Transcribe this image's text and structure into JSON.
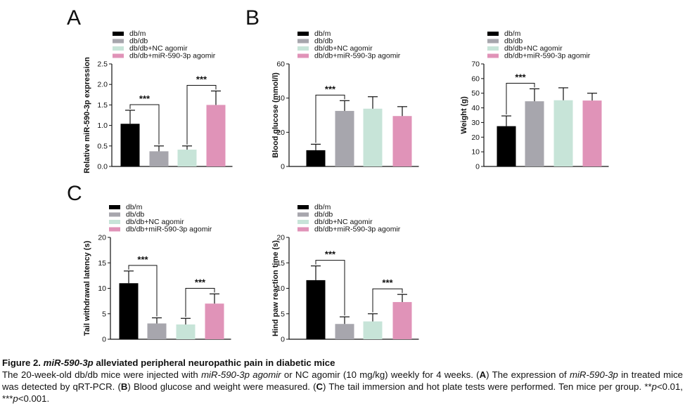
{
  "colors": {
    "db_m": "#000000",
    "db_db": "#a7a6ad",
    "nc_agomir": "#c7e4d8",
    "agomir": "#e093b8"
  },
  "chart_data": [
    {
      "panel": "A",
      "type": "bar",
      "categories": [
        "db/m",
        "db/db",
        "db/db+NC agomir",
        "db/db+miR-590-3p agomir"
      ],
      "values": [
        1.04,
        0.37,
        0.41,
        1.5
      ],
      "errors": [
        0.33,
        0.13,
        0.09,
        0.34
      ],
      "ylabel": "Relative miR-590-3p expression",
      "ylim": [
        0,
        2.5
      ],
      "yticks": [
        "0.0",
        "0.5",
        "1.0",
        "1.5",
        "2.0",
        "2.5"
      ],
      "significance": [
        {
          "from": 0,
          "to": 1,
          "label": "***"
        },
        {
          "from": 2,
          "to": 3,
          "label": "***"
        }
      ]
    },
    {
      "panel": "B",
      "type": "bar",
      "categories": [
        "db/m",
        "db/db",
        "db/db+NC agomir",
        "db/db+miR-590-3p agomir"
      ],
      "values": [
        9.5,
        32.5,
        33.8,
        29.5
      ],
      "errors": [
        3.5,
        6.0,
        7.0,
        5.5
      ],
      "ylabel": "Blood glucose (mmol/l)",
      "ylim": [
        0,
        60
      ],
      "yticks": [
        "0",
        "20",
        "40",
        "60"
      ],
      "significance": [
        {
          "from": 0,
          "to": 1,
          "label": "***"
        }
      ]
    },
    {
      "panel": "",
      "type": "bar",
      "categories": [
        "db/m",
        "db/db",
        "db/db+NC agomir",
        "db/db+miR-590-3p agomir"
      ],
      "values": [
        27.5,
        44.5,
        45.2,
        45.0
      ],
      "errors": [
        7.0,
        8.5,
        8.5,
        5.0
      ],
      "ylabel": "Weight (g)",
      "ylim": [
        0,
        70
      ],
      "yticks": [
        "0",
        "10",
        "20",
        "30",
        "40",
        "50",
        "60",
        "70"
      ],
      "significance": [
        {
          "from": 0,
          "to": 1,
          "label": "***"
        }
      ]
    },
    {
      "panel": "C",
      "type": "bar",
      "categories": [
        "db/m",
        "db/db",
        "db/db+NC agomir",
        "db/db+miR-590-3p agomir"
      ],
      "values": [
        11.0,
        3.1,
        2.9,
        7.0
      ],
      "errors": [
        2.4,
        1.1,
        1.2,
        1.9
      ],
      "ylabel": "Tail withdrawal latency (s)",
      "ylim": [
        0,
        20
      ],
      "yticks": [
        "0",
        "5",
        "10",
        "15",
        "20"
      ],
      "significance": [
        {
          "from": 0,
          "to": 1,
          "label": "***"
        },
        {
          "from": 2,
          "to": 3,
          "label": "***"
        }
      ]
    },
    {
      "panel": "",
      "type": "bar",
      "categories": [
        "db/m",
        "db/db",
        "db/db+NC agomir",
        "db/db+miR-590-3p agomir"
      ],
      "values": [
        11.6,
        3.0,
        3.5,
        7.3
      ],
      "errors": [
        2.8,
        1.4,
        1.5,
        1.5
      ],
      "ylabel": "Hind paw reaction time (s)",
      "ylim": [
        0,
        20
      ],
      "yticks": [
        "0",
        "5",
        "10",
        "15",
        "20"
      ],
      "significance": [
        {
          "from": 0,
          "to": 1,
          "label": "***"
        },
        {
          "from": 2,
          "to": 3,
          "label": "***"
        }
      ]
    }
  ],
  "caption": {
    "title_prefix": "Figure 2. ",
    "title_gene": "miR-590-3p",
    "title_rest": " alleviated peripheral neuropathic pain in diabetic mice",
    "t1": "The 20-week-old db/db mice were injected with ",
    "t1_italic": "miR-590-3p agomir",
    "t2": " or NC agomir (10 mg/kg) weekly for 4 weeks. (",
    "A": "A",
    "t3": ") The expression of ",
    "t3_italic": "miR-590-3p",
    "t4": " in treated mice was detected by qRT-PCR. (",
    "B": "B",
    "t5": ") Blood glucose and weight were measured. (",
    "C": "C",
    "t6": ") The tail immersion and hot plate tests were performed. Ten mice per group. **",
    "p1": "p",
    "t7": "<0.01, ***",
    "p2": "p",
    "t8": "<0.001."
  }
}
